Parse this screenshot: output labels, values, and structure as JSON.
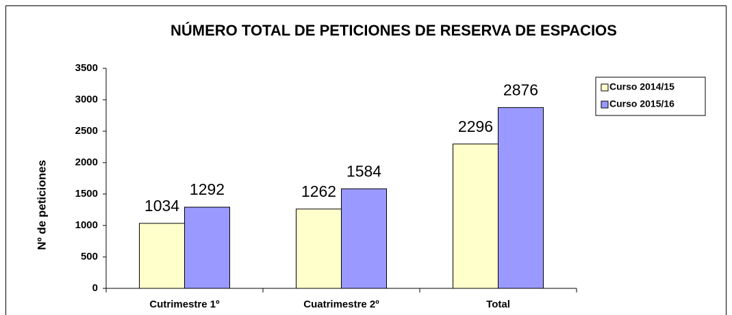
{
  "chart_data": {
    "type": "bar",
    "title": "NÚMERO TOTAL DE PETICIONES DE RESERVA DE ESPACIOS",
    "y_label": "Nº de peticiones",
    "categories": [
      "Cutrimestre 1º",
      "Cuatrimestre 2º",
      "Total"
    ],
    "series": [
      {
        "name": "Curso 2014/15",
        "color": "#ffffcc",
        "values": [
          1034,
          1262,
          2296
        ]
      },
      {
        "name": "Curso 2015/16",
        "color": "#9999ff",
        "values": [
          1292,
          1584,
          2876
        ]
      }
    ],
    "ylim": [
      0,
      3500
    ],
    "yticks": [
      0,
      500,
      1000,
      1500,
      2000,
      2500,
      3000,
      3500
    ],
    "legend": "right",
    "grid": false
  }
}
